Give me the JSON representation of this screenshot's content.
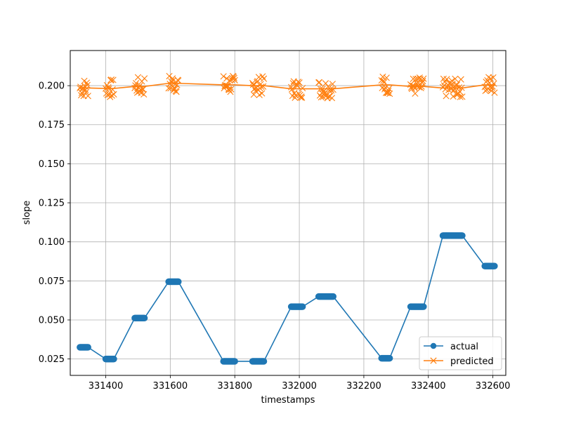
{
  "chart_data": {
    "type": "line",
    "title": "",
    "xlabel": "timestamps",
    "ylabel": "slope",
    "xlim": [
      331290,
      332640
    ],
    "ylim": [
      0.0145,
      0.2225
    ],
    "xticks": [
      331400,
      331600,
      331800,
      332000,
      332200,
      332400,
      332600
    ],
    "yticks": [
      0.025,
      0.05,
      0.075,
      0.1,
      0.125,
      0.15,
      0.175,
      0.2
    ],
    "xtick_labels": [
      "331400",
      "331600",
      "331800",
      "332000",
      "332200",
      "332400",
      "332600"
    ],
    "ytick_labels": [
      "0.025",
      "0.050",
      "0.075",
      "0.100",
      "0.125",
      "0.150",
      "0.175",
      "0.200"
    ],
    "grid": true,
    "legend_position": "lower-right",
    "series": [
      {
        "name": "actual",
        "color": "#1f77b4",
        "marker": "circle",
        "segments": [
          {
            "x_start": 331320,
            "x_end": 331345,
            "y": 0.0325
          },
          {
            "x_start": 331400,
            "x_end": 331425,
            "y": 0.025
          },
          {
            "x_start": 331490,
            "x_end": 331520,
            "y": 0.0512
          },
          {
            "x_start": 331595,
            "x_end": 331625,
            "y": 0.0745
          },
          {
            "x_start": 331765,
            "x_end": 331800,
            "y": 0.0235
          },
          {
            "x_start": 331855,
            "x_end": 331890,
            "y": 0.0235
          },
          {
            "x_start": 331975,
            "x_end": 332010,
            "y": 0.0585
          },
          {
            "x_start": 332060,
            "x_end": 332105,
            "y": 0.065
          },
          {
            "x_start": 332255,
            "x_end": 332280,
            "y": 0.0255
          },
          {
            "x_start": 332345,
            "x_end": 332385,
            "y": 0.0585
          },
          {
            "x_start": 332445,
            "x_end": 332505,
            "y": 0.104
          },
          {
            "x_start": 332575,
            "x_end": 332605,
            "y": 0.0845
          }
        ]
      },
      {
        "name": "predicted",
        "color": "#ff7f0e",
        "marker": "x",
        "segments": [
          {
            "x_start": 331320,
            "x_end": 331345,
            "y": 0.1985
          },
          {
            "x_start": 331400,
            "x_end": 331425,
            "y": 0.1982
          },
          {
            "x_start": 331490,
            "x_end": 331520,
            "y": 0.1995
          },
          {
            "x_start": 331595,
            "x_end": 331625,
            "y": 0.2015
          },
          {
            "x_start": 331765,
            "x_end": 331800,
            "y": 0.2005
          },
          {
            "x_start": 331855,
            "x_end": 331890,
            "y": 0.2
          },
          {
            "x_start": 331975,
            "x_end": 332010,
            "y": 0.198
          },
          {
            "x_start": 332060,
            "x_end": 332105,
            "y": 0.198
          },
          {
            "x_start": 332255,
            "x_end": 332280,
            "y": 0.2005
          },
          {
            "x_start": 332345,
            "x_end": 332385,
            "y": 0.1995
          },
          {
            "x_start": 332445,
            "x_end": 332505,
            "y": 0.1985
          },
          {
            "x_start": 332575,
            "x_end": 332605,
            "y": 0.2005
          }
        ]
      }
    ]
  }
}
